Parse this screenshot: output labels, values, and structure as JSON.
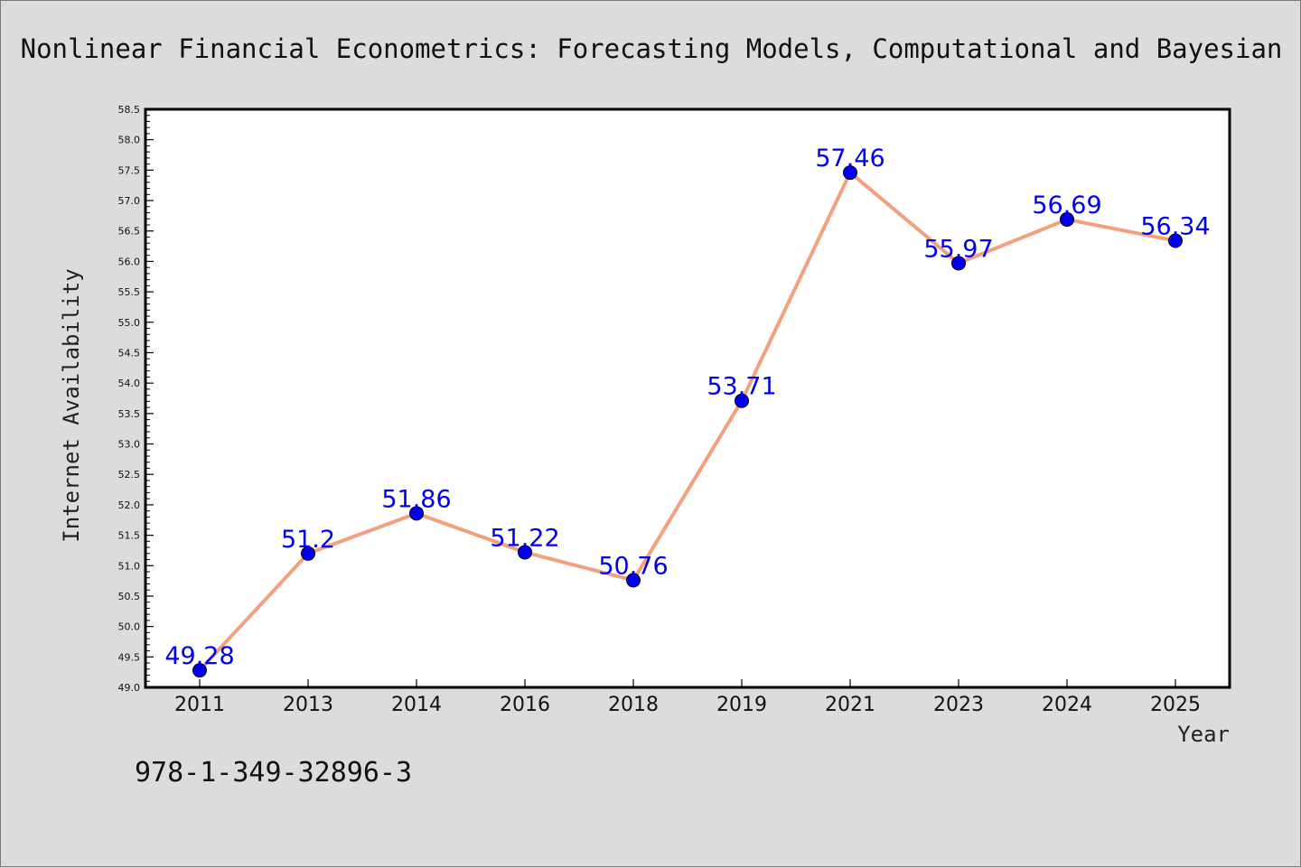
{
  "chart_data": {
    "type": "line",
    "title": "Nonlinear Financial Econometrics: Forecasting Models, Computational and Bayesian",
    "xlabel": "Year",
    "ylabel": "Internet Availability",
    "categories": [
      "2011",
      "2013",
      "2014",
      "2016",
      "2018",
      "2019",
      "2021",
      "2023",
      "2024",
      "2025"
    ],
    "values": [
      49.28,
      51.2,
      51.86,
      51.22,
      50.76,
      53.71,
      57.46,
      55.97,
      56.69,
      56.34
    ],
    "data_labels": [
      "49.28",
      "51.2",
      "51.86",
      "51.22",
      "50.76",
      "53.71",
      "57.46",
      "55.97",
      "56.69",
      "56.34"
    ],
    "ylim": [
      49.0,
      58.5
    ],
    "yticks": [
      "49.0",
      "49.5",
      "50.0",
      "50.5",
      "51.0",
      "51.5",
      "52.0",
      "52.5",
      "53.0",
      "53.5",
      "54.0",
      "54.5",
      "55.0",
      "55.5",
      "56.0",
      "56.5",
      "57.0",
      "57.5",
      "58.0",
      "58.5"
    ],
    "grid": false,
    "legend": "none",
    "colors": {
      "line": "#f4a07e",
      "marker": "#0000ee",
      "label": "#0000ee",
      "background": "#dcdcdc",
      "plot_background": "#ffffff"
    }
  },
  "footer": {
    "isbn": "978-1-349-32896-3"
  }
}
